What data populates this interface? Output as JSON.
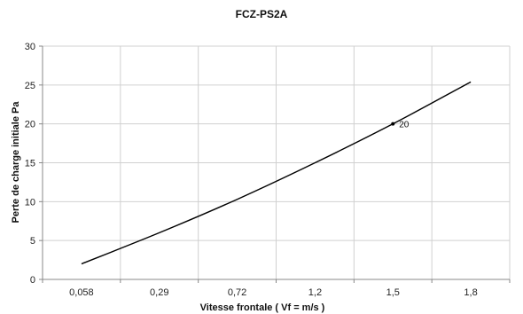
{
  "chart_data": {
    "type": "line",
    "title": "FCZ-PS2A",
    "xlabel": "Vitesse frontale  ( Vf =  m/s )",
    "ylabel": "Perte de charge initiale  Pa",
    "categories": [
      "0,058",
      "0,29",
      "0,72",
      "1,2",
      "1,5",
      "1,8"
    ],
    "yticks": [
      "0",
      "5",
      "10",
      "15",
      "20",
      "25",
      "30"
    ],
    "ylim": [
      0,
      30
    ],
    "grid": "vertical and horizontal",
    "series": [
      {
        "values": [
          2,
          6,
          10.3,
          15,
          20,
          25.4
        ],
        "color": "#000000"
      }
    ],
    "annotations": [
      {
        "category_index": 4,
        "value": 20,
        "text": "20"
      }
    ]
  }
}
